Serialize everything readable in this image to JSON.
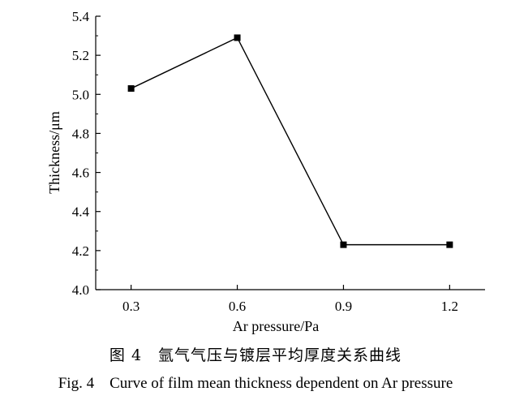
{
  "chart_data": {
    "type": "line",
    "x": [
      0.3,
      0.6,
      0.9,
      1.2
    ],
    "series": [
      {
        "values": [
          5.03,
          5.29,
          4.23,
          4.23
        ]
      }
    ],
    "xlabel": "Ar pressure/Pa",
    "ylabel": "Thickness/μm",
    "x_ticks": [
      "0.3",
      "0.6",
      "0.9",
      "1.2"
    ],
    "y_ticks": [
      "4.0",
      "4.2",
      "4.4",
      "4.6",
      "4.8",
      "5.0",
      "5.2",
      "5.4"
    ],
    "xlim": [
      0.2,
      1.3
    ],
    "ylim": [
      4.0,
      5.4
    ],
    "grid": false,
    "marker": "square",
    "line_color": "#000000"
  },
  "caption": {
    "cn": "图 4　氩气气压与镀层平均厚度关系曲线",
    "en": "Fig. 4　Curve of film mean thickness dependent on Ar pressure"
  }
}
